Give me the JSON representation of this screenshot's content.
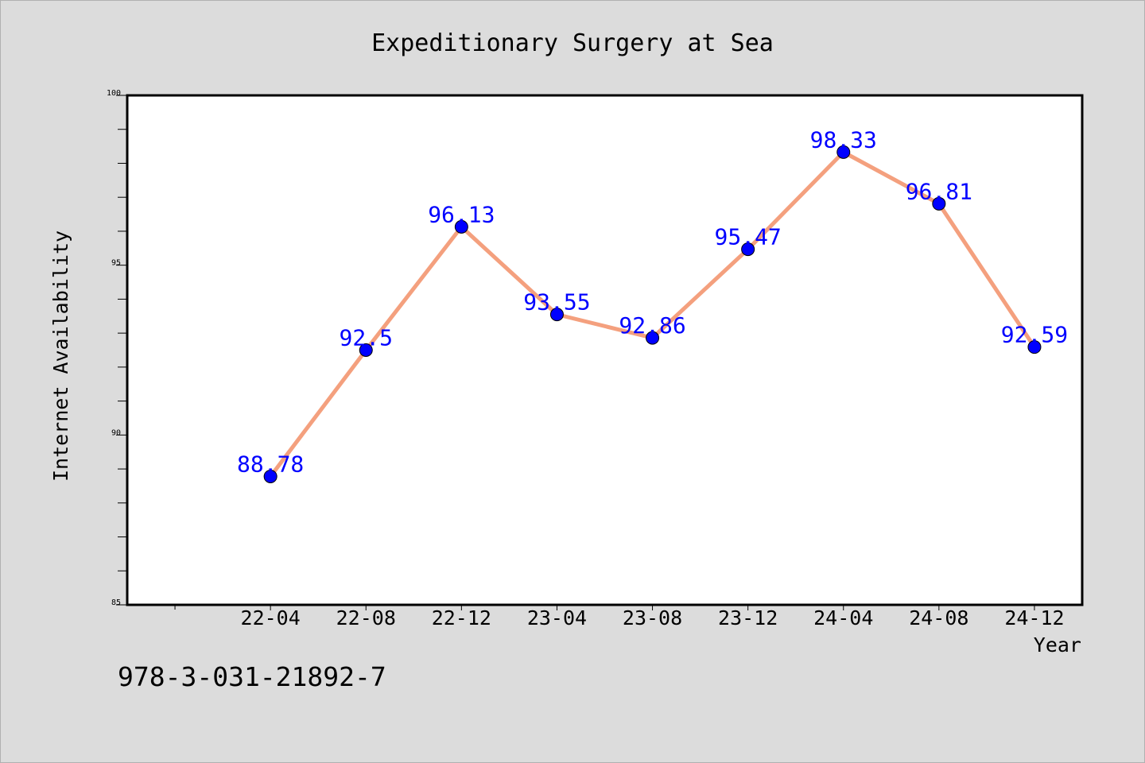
{
  "chart_data": {
    "type": "line",
    "title": "Expeditionary Surgery at Sea",
    "xlabel": "Year",
    "ylabel": "Internet Availability",
    "categories": [
      "22-04",
      "22-08",
      "22-12",
      "23-04",
      "23-08",
      "23-12",
      "24-04",
      "24-08",
      "24-12"
    ],
    "series": [
      {
        "values": [
          88.78,
          92.5,
          96.13,
          93.55,
          92.86,
          95.47,
          98.33,
          96.81,
          92.59
        ],
        "line_color": "#f4a07e",
        "marker_color": "#0000ff"
      }
    ],
    "data_labels": [
      "88.78",
      "92.5",
      "96.13",
      "93.55",
      "92.86",
      "95.47",
      "98.33",
      "96.81",
      "92.59"
    ],
    "ylim": [
      85,
      100
    ],
    "yticks": [
      "85",
      "90",
      "95",
      "100"
    ],
    "grid": false,
    "legend": "none"
  },
  "footer": {
    "isbn": "978-3-031-21892-7"
  }
}
